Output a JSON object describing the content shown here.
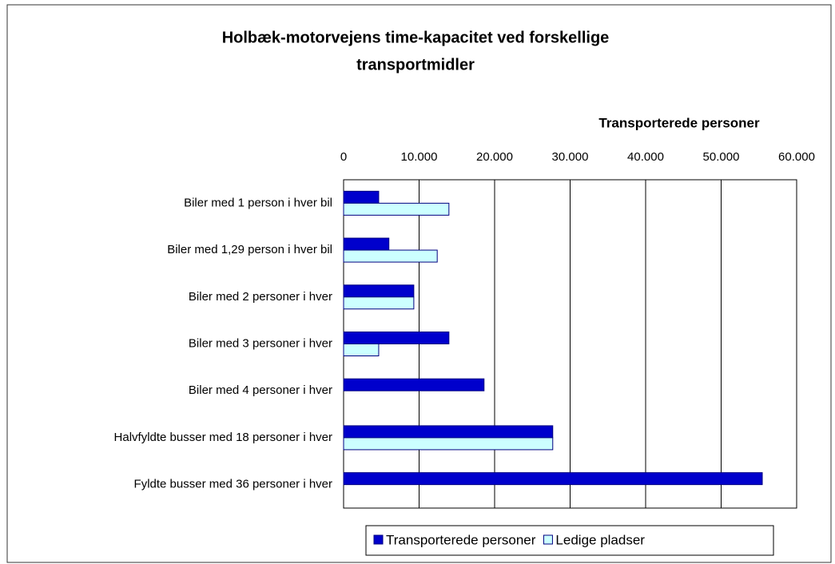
{
  "chart_data": {
    "type": "hbar",
    "title": [
      "Holbæk-motorvejens time-kapacitet ved forskellige",
      "transportmidler"
    ],
    "x_label": "Transporterede personer",
    "categories": [
      "Biler med 1 person i hver bil",
      "Biler med 1,29 person i hver bil",
      "Biler med 2 personer i hver",
      "Biler med 3 personer i hver",
      "Biler med 4 personer i hver",
      "Halvfyldte busser med 18 personer i hver",
      "Fyldte busser med 36 personer i hver"
    ],
    "series": [
      {
        "name": "Transporterede personer",
        "color": "#0000cc",
        "values": [
          4650,
          6000,
          9300,
          13950,
          18600,
          27700,
          55450
        ]
      },
      {
        "name": "Ledige pladser",
        "color": "#ccffff",
        "values": [
          13950,
          12400,
          9300,
          4650,
          null,
          27700,
          null
        ]
      }
    ],
    "xlim": [
      0,
      60000
    ],
    "xticks": [
      0,
      {
        "value": 10000,
        "label": "10.000"
      },
      {
        "value": 20000,
        "label": "20.000"
      },
      {
        "value": 30000,
        "label": "30.000"
      },
      {
        "value": 40000,
        "label": "40.000"
      },
      {
        "value": 50000,
        "label": "50.000"
      },
      {
        "value": 60000,
        "label": "60.000"
      }
    ],
    "grid": true,
    "legend": "bottom"
  }
}
